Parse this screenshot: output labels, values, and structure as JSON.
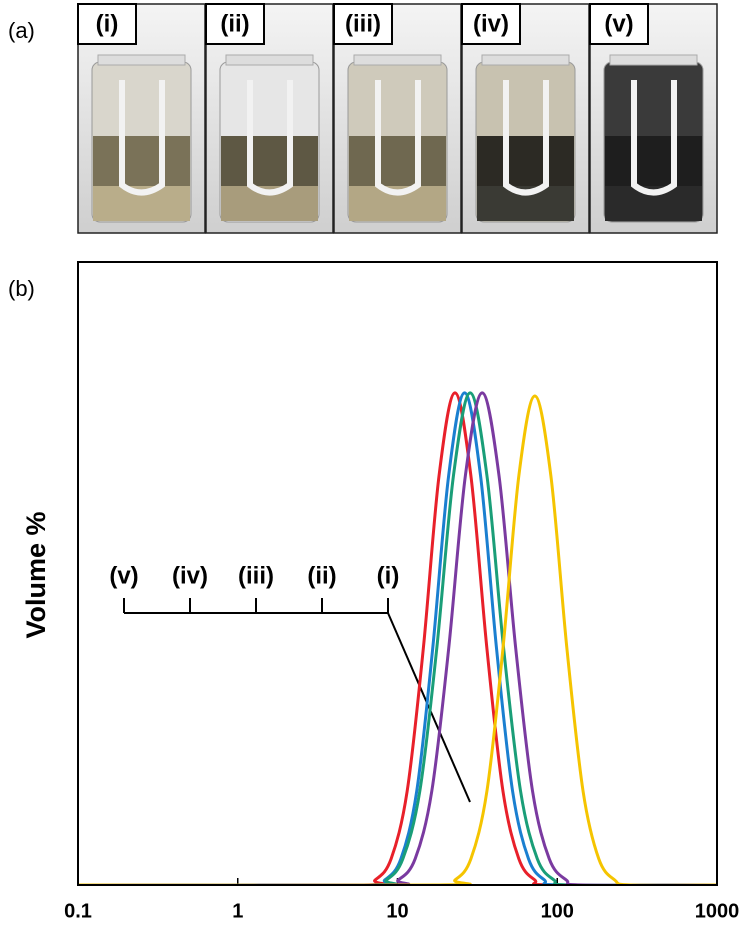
{
  "figure": {
    "panel_labels": [
      "(a)",
      "(b)"
    ],
    "photos": [
      {
        "label": "(i)"
      },
      {
        "label": "(ii)"
      },
      {
        "label": "(iii)"
      },
      {
        "label": "(iv)"
      },
      {
        "label": "(v)"
      }
    ]
  },
  "chart_data": {
    "type": "line",
    "ylabel": "Volume %",
    "xscale": "log",
    "xlim": [
      0.1,
      1000
    ],
    "xticks": [
      0.1,
      1,
      10,
      100,
      1000
    ],
    "ylim": [
      0,
      10
    ],
    "annotations": [
      "(v)",
      "(iv)",
      "(iii)",
      "(ii)",
      "(i)"
    ],
    "series": [
      {
        "color": "#e8202a",
        "x": [
          0.1,
          5.75,
          7.24,
          9.12,
          11.5,
          14.5,
          18.2,
          22.9,
          28.8,
          36.3,
          45.7,
          57.5,
          72.4,
          91.2,
          1000
        ],
        "values": [
          0,
          0,
          0.08,
          0.42,
          1.51,
          3.79,
          6.57,
          7.9,
          6.57,
          3.79,
          1.51,
          0.42,
          0.08,
          0,
          0
        ]
      },
      {
        "color": "#1a7fd0",
        "x": [
          0.1,
          6.61,
          8.32,
          10.5,
          13.2,
          16.6,
          20.9,
          26.3,
          33.1,
          41.7,
          52.5,
          66.1,
          83.2,
          105,
          1000
        ],
        "values": [
          0,
          0,
          0.08,
          0.42,
          1.51,
          3.79,
          6.57,
          7.9,
          6.57,
          3.79,
          1.51,
          0.42,
          0.08,
          0,
          0
        ]
      },
      {
        "color": "#1a9e78",
        "x": [
          0.1,
          6.68,
          8.51,
          10.8,
          13.8,
          17.6,
          22.4,
          28.5,
          36.3,
          46.2,
          58.9,
          75.0,
          95.5,
          122,
          1000
        ],
        "values": [
          0,
          0,
          0.08,
          0.42,
          1.51,
          3.79,
          6.57,
          7.9,
          6.57,
          3.79,
          1.51,
          0.42,
          0.08,
          0,
          0
        ]
      },
      {
        "color": "#7a3aa0",
        "x": [
          0.1,
          7.94,
          10.1,
          12.9,
          16.4,
          20.9,
          26.6,
          33.9,
          43.2,
          55.0,
          70.0,
          89.1,
          114,
          145,
          1000
        ],
        "values": [
          0,
          0,
          0.08,
          0.42,
          1.51,
          3.79,
          6.57,
          7.9,
          6.57,
          3.79,
          1.51,
          0.42,
          0.08,
          0,
          0
        ]
      },
      {
        "color": "#f5c400",
        "x": [
          0.1,
          18.2,
          22.9,
          28.8,
          36.3,
          45.7,
          57.5,
          72.4,
          91.2,
          115,
          145,
          182,
          229,
          288,
          1000
        ],
        "values": [
          0,
          0,
          0.08,
          0.42,
          1.51,
          3.79,
          6.57,
          7.85,
          6.57,
          3.79,
          1.51,
          0.42,
          0.08,
          0,
          0
        ]
      }
    ]
  }
}
